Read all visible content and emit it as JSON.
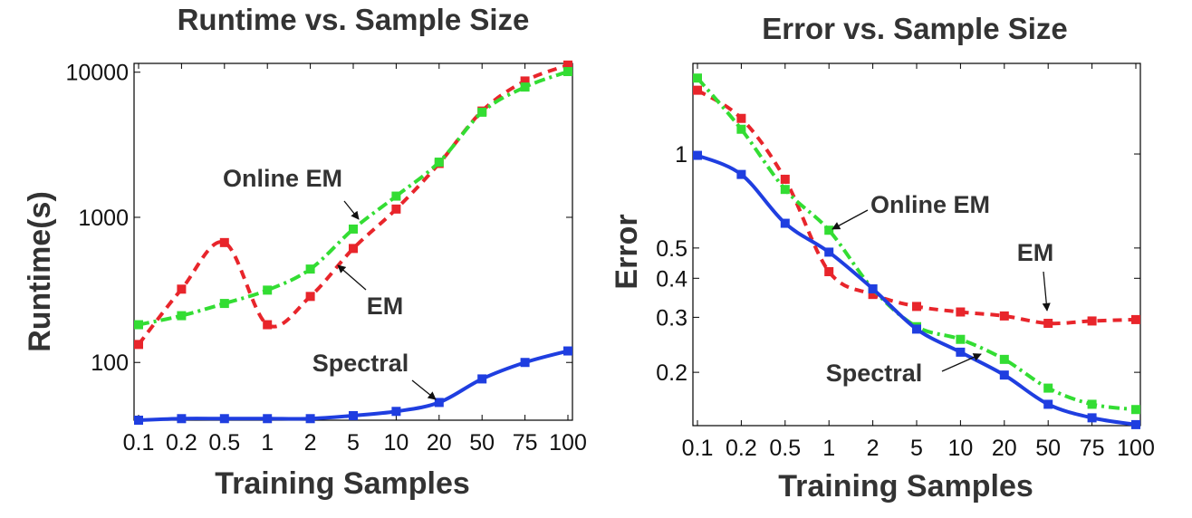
{
  "chart_data": [
    {
      "type": "line",
      "title": "Runtime vs. Sample Size",
      "xlabel": "Training Samples",
      "ylabel": "Runtime(s)",
      "yscale": "log",
      "ylim": [
        40,
        11500
      ],
      "categories": [
        "0.1",
        "0.2",
        "0.5",
        "1",
        "2",
        "5",
        "10",
        "20",
        "50",
        "75",
        "100"
      ],
      "ytick_labels": [
        "100",
        "1000",
        "10000"
      ],
      "ytick_values": [
        100,
        1000,
        10000
      ],
      "grid": false,
      "series": [
        {
          "name": "EM",
          "color": "#e8252b",
          "dash": "dashed",
          "values": [
            133,
            320,
            670,
            182,
            285,
            610,
            1140,
            2350,
            5400,
            8700,
            11200
          ]
        },
        {
          "name": "Online EM",
          "color": "#33dd33",
          "dash": "dashdot",
          "values": [
            182,
            210,
            255,
            315,
            440,
            830,
            1400,
            2400,
            5300,
            7900,
            10100
          ]
        },
        {
          "name": "Spectral",
          "color": "#1f3ee0",
          "dash": "solid",
          "values": [
            40,
            41,
            41,
            41,
            41,
            43,
            46,
            53,
            77,
            100,
            120
          ]
        }
      ],
      "annotations": [
        {
          "text": "Online EM",
          "series": "Online EM",
          "point_index": 5
        },
        {
          "text": "EM",
          "series": "EM",
          "point_index": 5
        },
        {
          "text": "Spectral",
          "series": "Spectral",
          "point_index": 7
        }
      ]
    },
    {
      "type": "line",
      "title": "Error vs. Sample Size",
      "xlabel": "Training Samples",
      "ylabel": "Error",
      "yscale": "log",
      "ylim": [
        0.135,
        1.95
      ],
      "categories": [
        "0.1",
        "0.2",
        "0.5",
        "1",
        "2",
        "5",
        "10",
        "20",
        "50",
        "75",
        "100"
      ],
      "ytick_labels": [
        "0.2",
        "0.3",
        "0.4",
        "0.5",
        "1"
      ],
      "ytick_values": [
        0.2,
        0.3,
        0.4,
        0.5,
        1
      ],
      "grid": false,
      "series": [
        {
          "name": "EM",
          "color": "#e8252b",
          "dash": "dashed",
          "values": [
            1.6,
            1.3,
            0.83,
            0.42,
            0.355,
            0.325,
            0.312,
            0.303,
            0.287,
            0.292,
            0.295
          ]
        },
        {
          "name": "Online EM",
          "color": "#33dd33",
          "dash": "dashdot",
          "values": [
            1.75,
            1.2,
            0.77,
            0.57,
            0.37,
            0.28,
            0.255,
            0.22,
            0.178,
            0.158,
            0.152
          ]
        },
        {
          "name": "Spectral",
          "color": "#1f3ee0",
          "dash": "solid",
          "values": [
            0.99,
            0.86,
            0.6,
            0.485,
            0.37,
            0.275,
            0.232,
            0.196,
            0.158,
            0.143,
            0.136
          ]
        }
      ],
      "annotations": [
        {
          "text": "Online EM",
          "series": "Online EM",
          "point_index": 3
        },
        {
          "text": "EM",
          "series": "EM",
          "point_index": 8
        },
        {
          "text": "Spectral",
          "series": "Spectral",
          "point_index": 6
        }
      ]
    }
  ]
}
